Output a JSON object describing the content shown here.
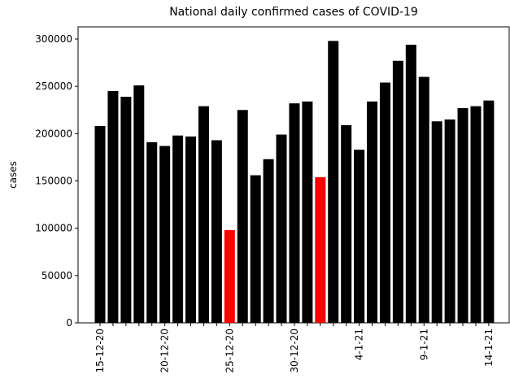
{
  "chart_data": {
    "type": "bar",
    "title": "National daily confirmed cases of COVID-19",
    "y_label": "cases",
    "categories": [
      "15-12-20",
      null,
      null,
      null,
      null,
      "20-12-20",
      null,
      null,
      null,
      null,
      "25-12-20",
      null,
      null,
      null,
      null,
      "30-12-20",
      null,
      null,
      null,
      null,
      "4-1-21",
      null,
      null,
      null,
      null,
      "9-1-21",
      null,
      null,
      null,
      null,
      "14-1-21"
    ],
    "values": [
      208000,
      245000,
      239000,
      251000,
      191000,
      187000,
      198000,
      197000,
      229000,
      193000,
      98000,
      225000,
      156000,
      173000,
      199000,
      232000,
      234000,
      154000,
      298000,
      209000,
      183000,
      234000,
      254000,
      277000,
      294000,
      260000,
      213000,
      215000,
      227000,
      229000,
      235000
    ],
    "colors": [
      "#000000",
      "#000000",
      "#000000",
      "#000000",
      "#000000",
      "#000000",
      "#000000",
      "#000000",
      "#000000",
      "#000000",
      "#ff0000",
      "#000000",
      "#000000",
      "#000000",
      "#000000",
      "#000000",
      "#000000",
      "#ff0000",
      "#000000",
      "#000000",
      "#000000",
      "#000000",
      "#000000",
      "#000000",
      "#000000",
      "#000000",
      "#000000",
      "#000000",
      "#000000",
      "#000000",
      "#000000"
    ],
    "ylim": [
      0,
      312900
    ],
    "yticks": [
      0,
      50000,
      100000,
      150000,
      200000,
      250000,
      300000
    ],
    "grid": false
  }
}
